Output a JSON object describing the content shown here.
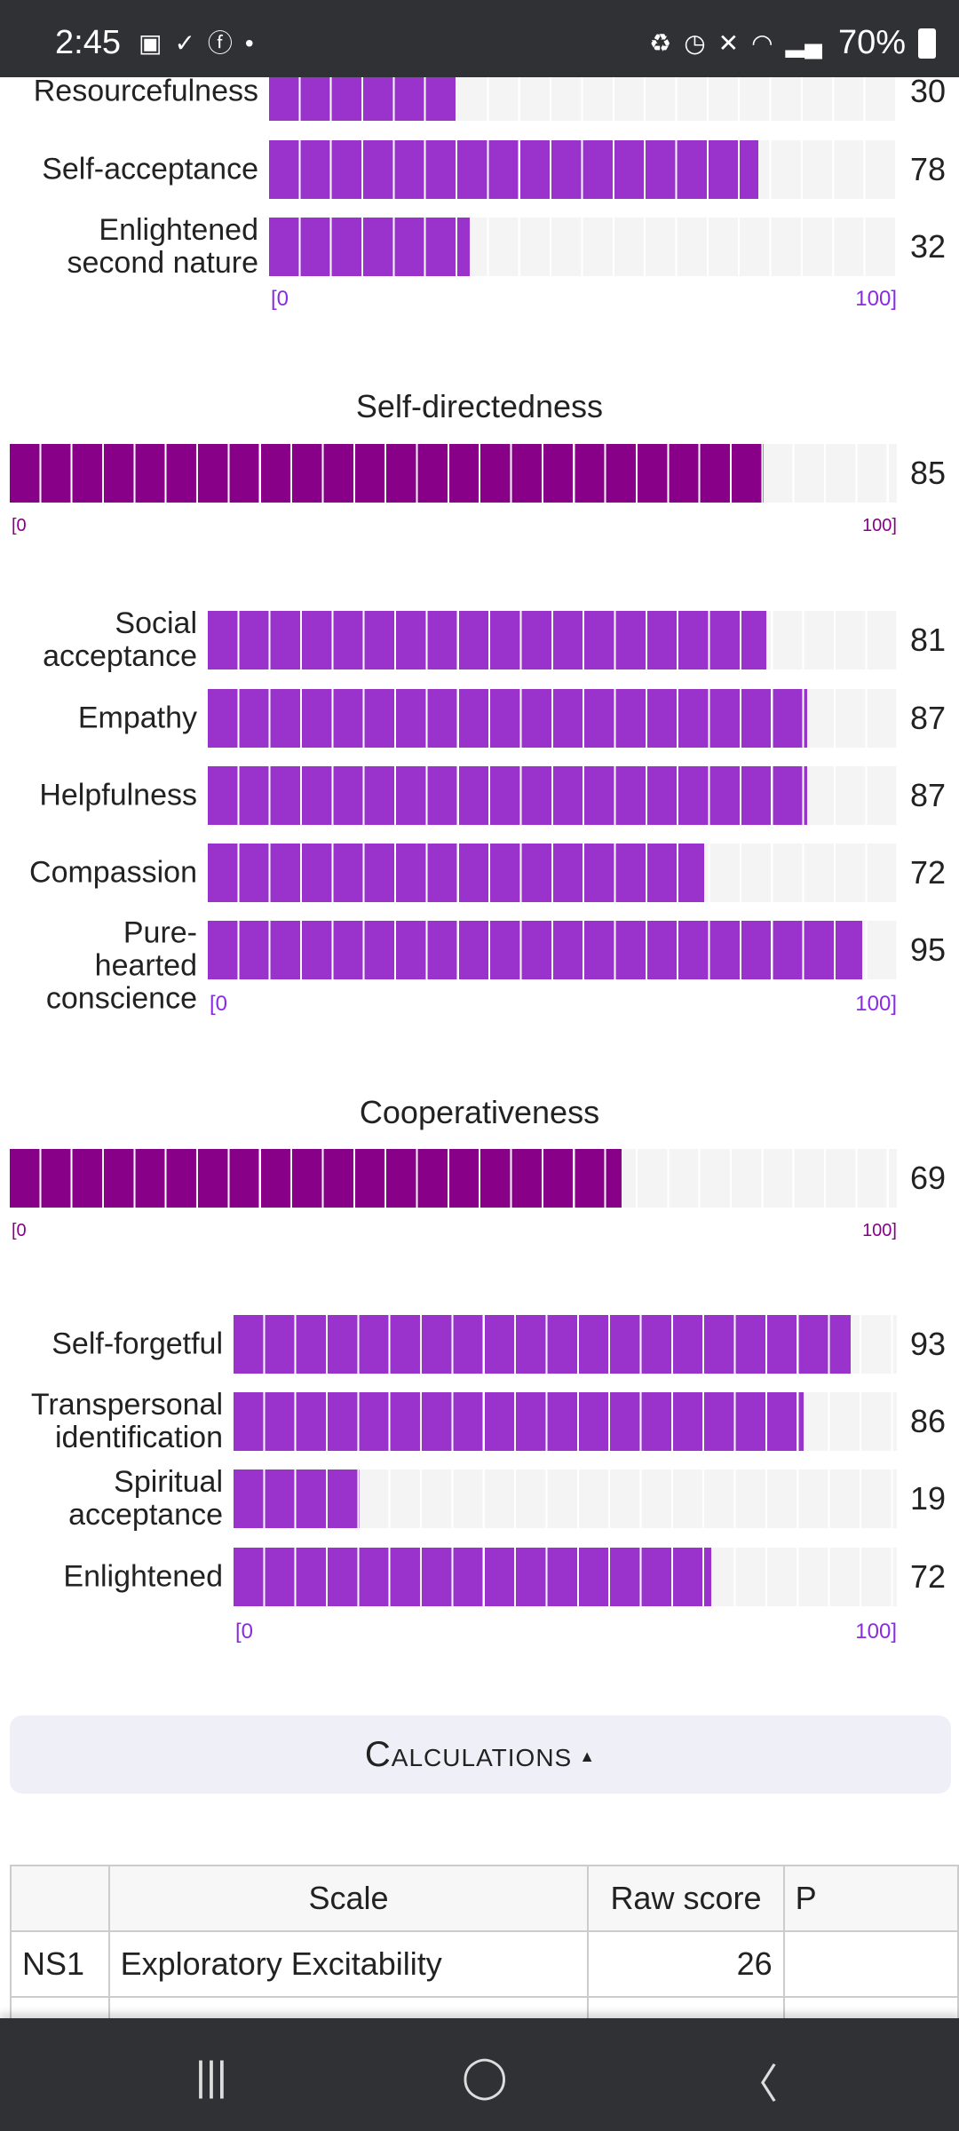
{
  "status_bar": {
    "time": "2:45",
    "battery": "70%",
    "left_icons": [
      "gallery-icon",
      "download-done-icon",
      "facebook-icon",
      "dot-icon"
    ],
    "right_icons": [
      "battery-saver-icon",
      "alarm-icon",
      "mute-icon",
      "wifi-icon",
      "signal-icon"
    ]
  },
  "colors": {
    "sub_bar": "#9933cc",
    "main_bar": "#880088",
    "track": "#f4f4f4"
  },
  "chart_data": [
    {
      "type": "bar",
      "title": "",
      "categories": [
        "Resourcefulness",
        "Self-acceptance",
        "Enlightened\nsecond nature"
      ],
      "values": [
        30,
        78,
        32
      ],
      "xlim": [
        0,
        100
      ],
      "axis_labels": [
        "[0",
        "100]"
      ]
    },
    {
      "type": "bar",
      "title": "Self-directedness",
      "categories": [
        ""
      ],
      "values": [
        85
      ],
      "xlim": [
        0,
        100
      ],
      "axis_labels": [
        "[0",
        "100]"
      ]
    },
    {
      "type": "bar",
      "title": "",
      "categories": [
        "Social\nacceptance",
        "Empathy",
        "Helpfulness",
        "Compassion",
        "Pure-\nhearted\nconscience"
      ],
      "values": [
        81,
        87,
        87,
        72,
        95
      ],
      "xlim": [
        0,
        100
      ],
      "axis_labels": [
        "[0",
        "100]"
      ]
    },
    {
      "type": "bar",
      "title": "Cooperativeness",
      "categories": [
        ""
      ],
      "values": [
        69
      ],
      "xlim": [
        0,
        100
      ],
      "axis_labels": [
        "[0",
        "100]"
      ]
    },
    {
      "type": "bar",
      "title": "",
      "categories": [
        "Self-forgetful",
        "Transpersonal\nidentification",
        "Spiritual\nacceptance",
        "Enlightened"
      ],
      "values": [
        93,
        86,
        19,
        72
      ],
      "xlim": [
        0,
        100
      ],
      "axis_labels": [
        "[0",
        "100]"
      ]
    }
  ],
  "calculations": {
    "label": "Calculations",
    "arrow": "▲"
  },
  "table": {
    "headers": [
      "",
      "Scale",
      "Raw score",
      "P"
    ],
    "rows": [
      [
        "NS1",
        "Exploratory Excitability",
        "26",
        ""
      ]
    ]
  }
}
